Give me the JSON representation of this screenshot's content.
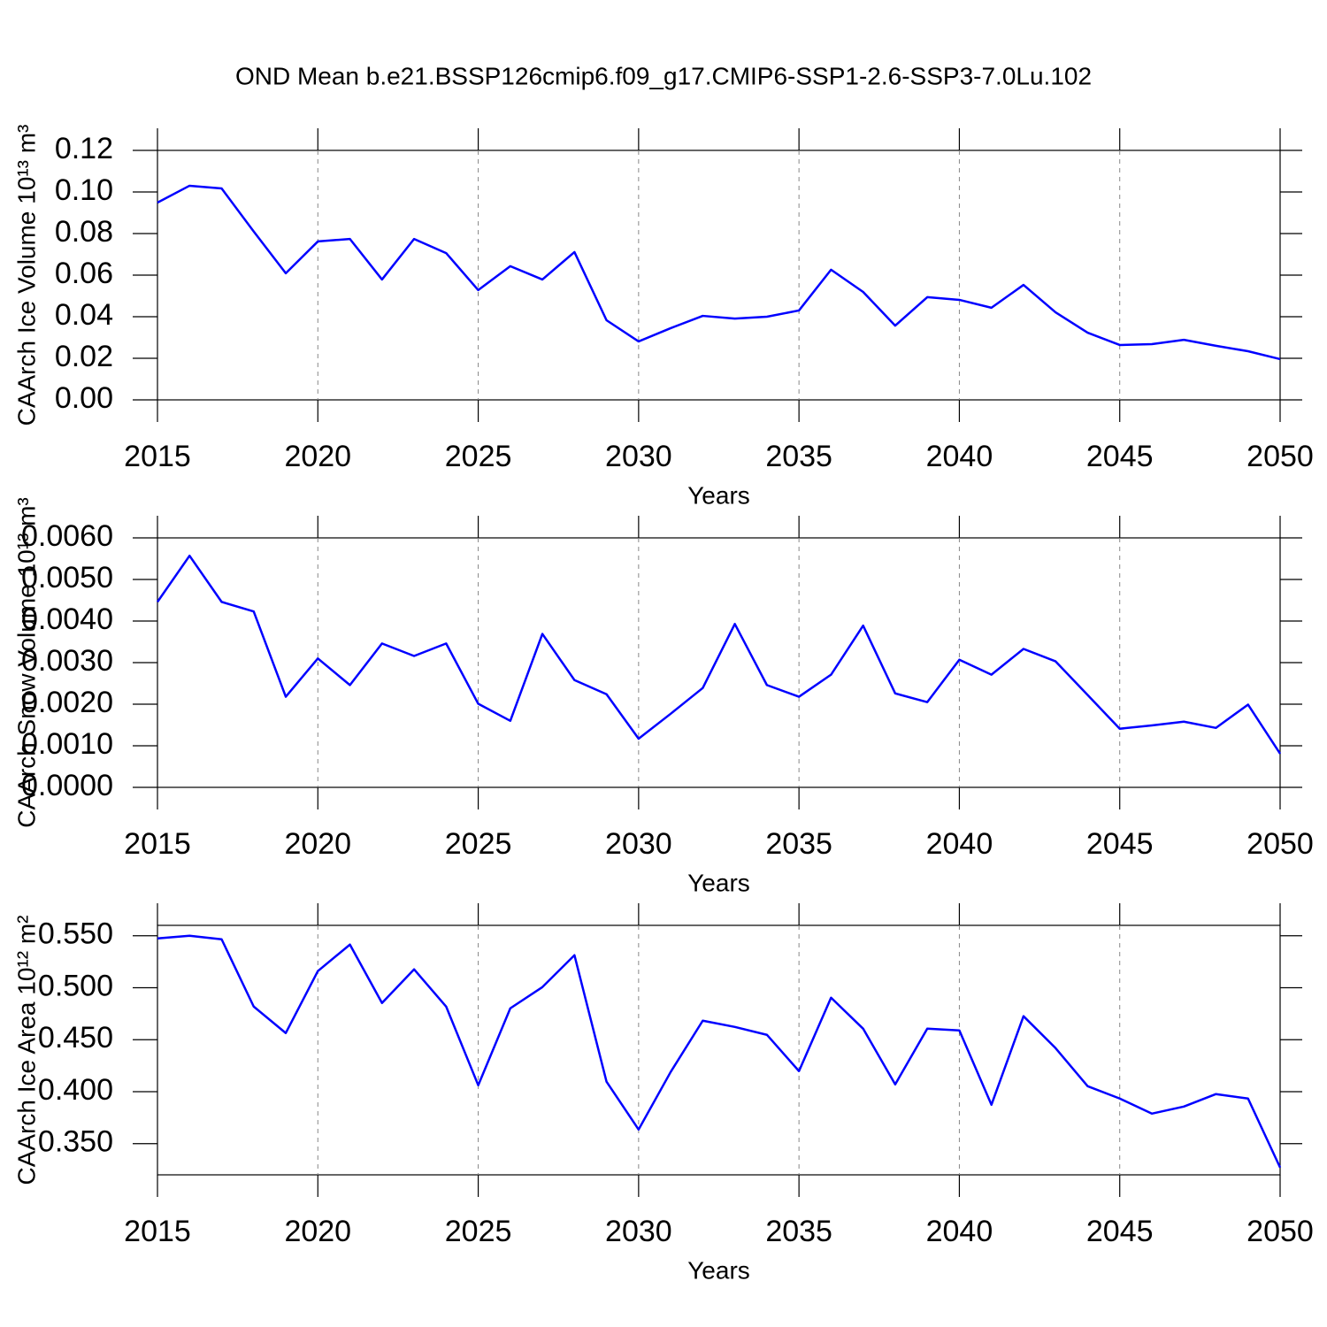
{
  "title": "OND Mean b.e21.BSSP126cmip6.f09_g17.CMIP6-SSP1-2.6-SSP3-7.0Lu.102",
  "chart_data": [
    {
      "type": "line",
      "ylabel": "CAArch Ice Volume 10¹³ m³",
      "xlabel": "Years",
      "x": [
        2015,
        2016,
        2017,
        2018,
        2019,
        2020,
        2021,
        2022,
        2023,
        2024,
        2025,
        2026,
        2027,
        2028,
        2029,
        2030,
        2031,
        2032,
        2033,
        2034,
        2035,
        2036,
        2037,
        2038,
        2039,
        2040,
        2041,
        2042,
        2043,
        2044,
        2045,
        2046,
        2047,
        2048,
        2049,
        2050
      ],
      "series": [
        {
          "color": "#0000ff",
          "values": [
            0.0949,
            0.103,
            0.1017,
            0.081,
            0.0609,
            0.0762,
            0.0774,
            0.0579,
            0.0774,
            0.0706,
            0.0528,
            0.0643,
            0.0579,
            0.0711,
            0.0383,
            0.0281,
            0.0345,
            0.0404,
            0.0391,
            0.04,
            0.043,
            0.0626,
            0.0519,
            0.0357,
            0.0494,
            0.0481,
            0.0443,
            0.0553,
            0.0421,
            0.0323,
            0.0264,
            0.0268,
            0.0289,
            0.026,
            0.0234,
            0.0196
          ]
        }
      ],
      "xlim": [
        2015,
        2050
      ],
      "xticks": [
        2015,
        2020,
        2025,
        2030,
        2035,
        2040,
        2045,
        2050
      ],
      "ylim": [
        0,
        0.12
      ],
      "yticks": [
        {
          "value": 0,
          "label": "0.00"
        },
        0.02,
        0.04,
        0.06,
        0.08,
        {
          "value": 0.1,
          "label": "0.10"
        },
        0.12
      ],
      "grid": "x"
    },
    {
      "type": "line",
      "ylabel": "CAArch Snow Volume 10¹³ m³",
      "xlabel": "Years",
      "x": [
        2015,
        2016,
        2017,
        2018,
        2019,
        2020,
        2021,
        2022,
        2023,
        2024,
        2025,
        2026,
        2027,
        2028,
        2029,
        2030,
        2031,
        2032,
        2033,
        2034,
        2035,
        2036,
        2037,
        2038,
        2039,
        2040,
        2041,
        2042,
        2043,
        2044,
        2045,
        2046,
        2047,
        2048,
        2049,
        2050
      ],
      "series": [
        {
          "color": "#0000ff",
          "values": [
            0.00446,
            0.00557,
            0.00446,
            0.00423,
            0.00218,
            0.0031,
            0.00246,
            0.00346,
            0.00316,
            0.00346,
            0.00201,
            0.0016,
            0.00369,
            0.00258,
            0.00224,
            0.00117,
            0.00177,
            0.00239,
            0.00393,
            0.00246,
            0.00218,
            0.00271,
            0.00389,
            0.00226,
            0.00205,
            0.00307,
            0.00271,
            0.00333,
            0.00303,
            0.00222,
            0.00141,
            0.00149,
            0.00158,
            0.00143,
            0.00199,
            0.00081
          ]
        }
      ],
      "xlim": [
        2015,
        2050
      ],
      "xticks": [
        2015,
        2020,
        2025,
        2030,
        2035,
        2040,
        2045,
        2050
      ],
      "ylim": [
        0,
        0.006
      ],
      "yticks": [
        {
          "value": 0,
          "label": "0.0000"
        },
        {
          "value": 0.001,
          "label": "0.0010"
        },
        {
          "value": 0.002,
          "label": "0.0020"
        },
        {
          "value": 0.003,
          "label": "0.0030"
        },
        {
          "value": 0.004,
          "label": "0.0040"
        },
        {
          "value": 0.005,
          "label": "0.0050"
        },
        {
          "value": 0.006,
          "label": "0.0060"
        }
      ],
      "grid": "x"
    },
    {
      "type": "line",
      "ylabel": "CAArch Ice Area 10¹² m²",
      "xlabel": "Years",
      "x": [
        2015,
        2016,
        2017,
        2018,
        2019,
        2020,
        2021,
        2022,
        2023,
        2024,
        2025,
        2026,
        2027,
        2028,
        2029,
        2030,
        2031,
        2032,
        2033,
        2034,
        2035,
        2036,
        2037,
        2038,
        2039,
        2040,
        2041,
        2042,
        2043,
        2044,
        2045,
        2046,
        2047,
        2048,
        2049,
        2050
      ],
      "series": [
        {
          "color": "#0000ff",
          "values": [
            0.5474,
            0.55,
            0.5466,
            0.4819,
            0.4564,
            0.516,
            0.5415,
            0.4853,
            0.5177,
            0.4819,
            0.4062,
            0.4802,
            0.5006,
            0.5313,
            0.4096,
            0.3636,
            0.419,
            0.4683,
            0.4623,
            0.4547,
            0.4198,
            0.4904,
            0.4606,
            0.407,
            0.4606,
            0.4589,
            0.3874,
            0.4726,
            0.4419,
            0.4053,
            0.3934,
            0.3789,
            0.3857,
            0.3977,
            0.3934,
            0.327
          ]
        }
      ],
      "xlim": [
        2015,
        2050
      ],
      "xticks": [
        2015,
        2020,
        2025,
        2030,
        2035,
        2040,
        2045,
        2050
      ],
      "ylim": [
        0.32,
        0.56
      ],
      "yticks": [
        {
          "value": 0.35,
          "label": "0.350"
        },
        {
          "value": 0.4,
          "label": "0.400"
        },
        {
          "value": 0.45,
          "label": "0.450"
        },
        {
          "value": 0.5,
          "label": "0.500"
        },
        {
          "value": 0.55,
          "label": "0.550"
        }
      ],
      "grid": "x"
    }
  ]
}
